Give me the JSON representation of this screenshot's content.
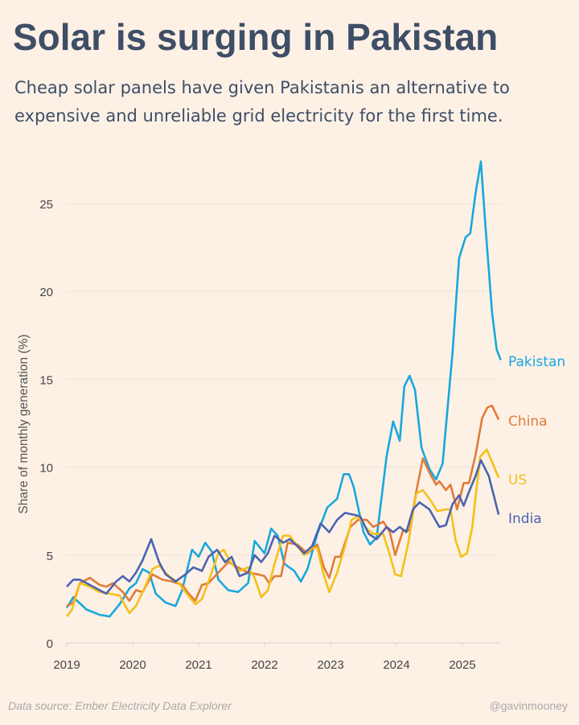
{
  "chart_data": {
    "type": "line",
    "title": "Solar is surging in Pakistan",
    "subtitle": "Cheap solar panels have given Pakistanis an alternative to expensive and unreliable grid electricity for the first time.",
    "xlabel": "",
    "ylabel": "Share of monthly generation (%)",
    "xlim": [
      2019,
      2025.6
    ],
    "ylim": [
      0,
      27.5
    ],
    "xticks": [
      "2019",
      "2020",
      "2021",
      "2022",
      "2023",
      "2024",
      "2025"
    ],
    "yticks": [
      "0",
      "5",
      "10",
      "15",
      "20",
      "25"
    ],
    "grid": true,
    "legend": "direct labels at line ends (right)",
    "series": [
      {
        "name": "Pakistan",
        "color": "#1aa7dc",
        "points": [
          [
            2019.0,
            2.0
          ],
          [
            2019.1,
            2.6
          ],
          [
            2019.3,
            1.9
          ],
          [
            2019.5,
            1.6
          ],
          [
            2019.65,
            1.5
          ],
          [
            2019.8,
            2.2
          ],
          [
            2019.95,
            3.1
          ],
          [
            2020.05,
            3.4
          ],
          [
            2020.15,
            4.2
          ],
          [
            2020.25,
            4.0
          ],
          [
            2020.35,
            2.8
          ],
          [
            2020.5,
            2.3
          ],
          [
            2020.65,
            2.1
          ],
          [
            2020.75,
            3.0
          ],
          [
            2020.9,
            5.3
          ],
          [
            2021.0,
            4.9
          ],
          [
            2021.1,
            5.7
          ],
          [
            2021.2,
            5.2
          ],
          [
            2021.3,
            3.6
          ],
          [
            2021.45,
            3.0
          ],
          [
            2021.6,
            2.9
          ],
          [
            2021.75,
            3.4
          ],
          [
            2021.85,
            5.8
          ],
          [
            2022.0,
            5.1
          ],
          [
            2022.1,
            6.5
          ],
          [
            2022.2,
            6.1
          ],
          [
            2022.3,
            4.5
          ],
          [
            2022.45,
            4.1
          ],
          [
            2022.55,
            3.5
          ],
          [
            2022.65,
            4.2
          ],
          [
            2022.8,
            6.2
          ],
          [
            2022.95,
            7.7
          ],
          [
            2023.1,
            8.2
          ],
          [
            2023.2,
            9.6
          ],
          [
            2023.28,
            9.6
          ],
          [
            2023.35,
            8.9
          ],
          [
            2023.5,
            6.3
          ],
          [
            2023.6,
            5.6
          ],
          [
            2023.7,
            6.0
          ],
          [
            2023.85,
            10.6
          ],
          [
            2023.95,
            12.6
          ],
          [
            2024.05,
            11.5
          ],
          [
            2024.12,
            14.6
          ],
          [
            2024.2,
            15.2
          ],
          [
            2024.28,
            14.4
          ],
          [
            2024.38,
            11.1
          ],
          [
            2024.5,
            9.9
          ],
          [
            2024.6,
            9.3
          ],
          [
            2024.7,
            10.2
          ],
          [
            2024.85,
            16.5
          ],
          [
            2024.95,
            21.9
          ],
          [
            2025.05,
            23.1
          ],
          [
            2025.12,
            23.3
          ],
          [
            2025.2,
            25.6
          ],
          [
            2025.28,
            27.4
          ],
          [
            2025.35,
            23.7
          ],
          [
            2025.45,
            18.8
          ],
          [
            2025.52,
            16.7
          ],
          [
            2025.58,
            16.1
          ]
        ]
      },
      {
        "name": "China",
        "color": "#e07b39",
        "points": [
          [
            2019.0,
            2.1
          ],
          [
            2019.1,
            2.3
          ],
          [
            2019.2,
            3.4
          ],
          [
            2019.35,
            3.7
          ],
          [
            2019.5,
            3.3
          ],
          [
            2019.6,
            3.2
          ],
          [
            2019.7,
            3.4
          ],
          [
            2019.85,
            2.9
          ],
          [
            2019.95,
            2.4
          ],
          [
            2020.05,
            3.0
          ],
          [
            2020.15,
            2.9
          ],
          [
            2020.3,
            3.9
          ],
          [
            2020.45,
            3.6
          ],
          [
            2020.6,
            3.5
          ],
          [
            2020.75,
            3.3
          ],
          [
            2020.85,
            2.8
          ],
          [
            2020.95,
            2.4
          ],
          [
            2021.05,
            3.3
          ],
          [
            2021.15,
            3.4
          ],
          [
            2021.3,
            4.0
          ],
          [
            2021.45,
            4.6
          ],
          [
            2021.6,
            4.3
          ],
          [
            2021.75,
            4.0
          ],
          [
            2021.9,
            3.9
          ],
          [
            2022.0,
            3.8
          ],
          [
            2022.07,
            3.4
          ],
          [
            2022.15,
            3.8
          ],
          [
            2022.25,
            3.8
          ],
          [
            2022.35,
            5.7
          ],
          [
            2022.5,
            5.6
          ],
          [
            2022.65,
            5.1
          ],
          [
            2022.8,
            5.6
          ],
          [
            2022.9,
            4.3
          ],
          [
            2022.98,
            3.7
          ],
          [
            2023.07,
            4.9
          ],
          [
            2023.15,
            4.9
          ],
          [
            2023.3,
            6.6
          ],
          [
            2023.42,
            7.0
          ],
          [
            2023.55,
            7.0
          ],
          [
            2023.65,
            6.6
          ],
          [
            2023.8,
            6.9
          ],
          [
            2023.9,
            6.3
          ],
          [
            2023.98,
            5.0
          ],
          [
            2024.1,
            6.4
          ],
          [
            2024.2,
            6.4
          ],
          [
            2024.3,
            8.6
          ],
          [
            2024.4,
            10.5
          ],
          [
            2024.5,
            9.7
          ],
          [
            2024.6,
            9.0
          ],
          [
            2024.65,
            9.2
          ],
          [
            2024.75,
            8.7
          ],
          [
            2024.82,
            9.0
          ],
          [
            2024.92,
            7.6
          ],
          [
            2025.02,
            9.1
          ],
          [
            2025.1,
            9.1
          ],
          [
            2025.2,
            10.7
          ],
          [
            2025.3,
            12.8
          ],
          [
            2025.38,
            13.4
          ],
          [
            2025.45,
            13.5
          ],
          [
            2025.55,
            12.7
          ]
        ]
      },
      {
        "name": "US",
        "color": "#f5c018",
        "points": [
          [
            2019.0,
            1.5
          ],
          [
            2019.08,
            1.9
          ],
          [
            2019.2,
            3.4
          ],
          [
            2019.35,
            3.2
          ],
          [
            2019.5,
            2.9
          ],
          [
            2019.65,
            2.8
          ],
          [
            2019.8,
            2.7
          ],
          [
            2019.95,
            1.7
          ],
          [
            2020.05,
            2.1
          ],
          [
            2020.2,
            3.3
          ],
          [
            2020.3,
            4.2
          ],
          [
            2020.4,
            4.4
          ],
          [
            2020.55,
            3.8
          ],
          [
            2020.7,
            3.4
          ],
          [
            2020.8,
            2.9
          ],
          [
            2020.95,
            2.2
          ],
          [
            2021.05,
            2.5
          ],
          [
            2021.15,
            3.5
          ],
          [
            2021.3,
            5.1
          ],
          [
            2021.38,
            5.3
          ],
          [
            2021.5,
            4.5
          ],
          [
            2021.62,
            4.1
          ],
          [
            2021.75,
            4.3
          ],
          [
            2021.85,
            3.7
          ],
          [
            2021.95,
            2.6
          ],
          [
            2022.05,
            3.0
          ],
          [
            2022.15,
            4.5
          ],
          [
            2022.28,
            6.1
          ],
          [
            2022.38,
            6.1
          ],
          [
            2022.5,
            5.5
          ],
          [
            2022.6,
            5.0
          ],
          [
            2022.72,
            5.4
          ],
          [
            2022.8,
            5.4
          ],
          [
            2022.88,
            4.1
          ],
          [
            2022.98,
            2.9
          ],
          [
            2023.1,
            4.0
          ],
          [
            2023.22,
            5.5
          ],
          [
            2023.32,
            7.0
          ],
          [
            2023.42,
            7.2
          ],
          [
            2023.55,
            6.5
          ],
          [
            2023.65,
            6.2
          ],
          [
            2023.8,
            6.2
          ],
          [
            2023.9,
            5.0
          ],
          [
            2023.98,
            3.9
          ],
          [
            2024.07,
            3.8
          ],
          [
            2024.18,
            5.7
          ],
          [
            2024.3,
            8.5
          ],
          [
            2024.4,
            8.7
          ],
          [
            2024.52,
            8.1
          ],
          [
            2024.62,
            7.5
          ],
          [
            2024.75,
            7.6
          ],
          [
            2024.82,
            7.6
          ],
          [
            2024.9,
            5.8
          ],
          [
            2024.98,
            4.9
          ],
          [
            2025.07,
            5.1
          ],
          [
            2025.15,
            6.6
          ],
          [
            2025.27,
            10.6
          ],
          [
            2025.37,
            11.0
          ],
          [
            2025.45,
            10.3
          ],
          [
            2025.55,
            9.4
          ]
        ]
      },
      {
        "name": "India",
        "color": "#4a64b0",
        "points": [
          [
            2019.0,
            3.2
          ],
          [
            2019.1,
            3.6
          ],
          [
            2019.2,
            3.6
          ],
          [
            2019.35,
            3.3
          ],
          [
            2019.5,
            3.0
          ],
          [
            2019.6,
            2.8
          ],
          [
            2019.75,
            3.5
          ],
          [
            2019.85,
            3.8
          ],
          [
            2019.95,
            3.5
          ],
          [
            2020.05,
            4.0
          ],
          [
            2020.15,
            4.7
          ],
          [
            2020.28,
            5.9
          ],
          [
            2020.4,
            4.6
          ],
          [
            2020.5,
            3.9
          ],
          [
            2020.65,
            3.5
          ],
          [
            2020.8,
            3.9
          ],
          [
            2020.92,
            4.3
          ],
          [
            2021.05,
            4.1
          ],
          [
            2021.15,
            4.9
          ],
          [
            2021.28,
            5.3
          ],
          [
            2021.4,
            4.6
          ],
          [
            2021.5,
            4.9
          ],
          [
            2021.62,
            3.8
          ],
          [
            2021.75,
            4.0
          ],
          [
            2021.85,
            5.0
          ],
          [
            2021.95,
            4.6
          ],
          [
            2022.05,
            5.1
          ],
          [
            2022.15,
            6.1
          ],
          [
            2022.28,
            5.7
          ],
          [
            2022.38,
            5.9
          ],
          [
            2022.5,
            5.5
          ],
          [
            2022.6,
            5.1
          ],
          [
            2022.72,
            5.5
          ],
          [
            2022.85,
            6.8
          ],
          [
            2022.98,
            6.3
          ],
          [
            2023.1,
            7.0
          ],
          [
            2023.22,
            7.4
          ],
          [
            2023.35,
            7.3
          ],
          [
            2023.45,
            7.2
          ],
          [
            2023.58,
            6.2
          ],
          [
            2023.7,
            5.9
          ],
          [
            2023.85,
            6.6
          ],
          [
            2023.95,
            6.3
          ],
          [
            2024.05,
            6.6
          ],
          [
            2024.15,
            6.3
          ],
          [
            2024.25,
            7.6
          ],
          [
            2024.35,
            8.0
          ],
          [
            2024.5,
            7.6
          ],
          [
            2024.65,
            6.6
          ],
          [
            2024.75,
            6.7
          ],
          [
            2024.85,
            7.9
          ],
          [
            2024.95,
            8.4
          ],
          [
            2025.02,
            7.8
          ],
          [
            2025.1,
            8.6
          ],
          [
            2025.2,
            9.5
          ],
          [
            2025.28,
            10.4
          ],
          [
            2025.4,
            9.5
          ],
          [
            2025.55,
            7.3
          ]
        ]
      }
    ],
    "source": "Data source: Ember Electricity Data Explorer",
    "credit": "@gavinmooney"
  }
}
